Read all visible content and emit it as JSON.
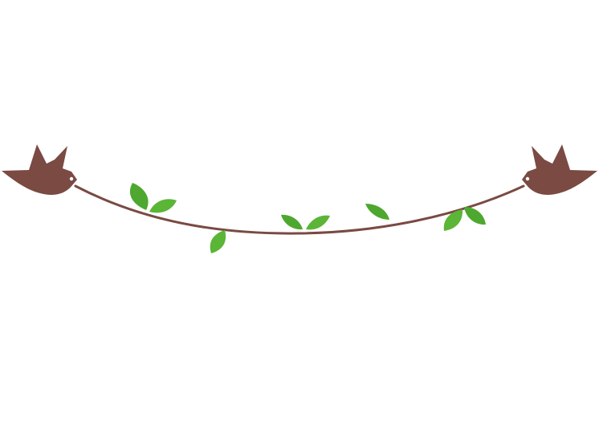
{
  "colors": {
    "background": "#ffffff",
    "bird": "#7a4a43",
    "vine": "#7a4a43",
    "leaf_dark": "#3f9a22",
    "leaf_light": "#6cc23d"
  },
  "elements": {
    "left_bird_icon": "bird-icon",
    "right_bird_icon": "bird-icon",
    "vine": "vine-line",
    "leaf_icon": "leaf-icon"
  }
}
